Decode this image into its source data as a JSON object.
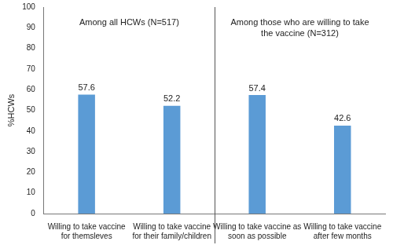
{
  "chart_data": {
    "type": "bar",
    "y_label": "%HCWs",
    "annotations": [
      "Among all HCWs (N=517)",
      "Among those who are willing to take the vaccine (N=312)"
    ],
    "categories": [
      "Willing to take vaccine for themsleves",
      "Willing to take vaccine for their family/children",
      "Willing to take vaccine as soon as possible",
      "Willing to take vaccine after few months"
    ],
    "values": [
      57.6,
      52.2,
      57.4,
      42.6
    ],
    "color": "#5b9bd5",
    "ylim": [
      0,
      100
    ],
    "yticks": [
      0,
      10,
      20,
      30,
      40,
      50,
      60,
      70,
      80,
      90,
      100
    ],
    "grid": false,
    "data_labels": true
  }
}
